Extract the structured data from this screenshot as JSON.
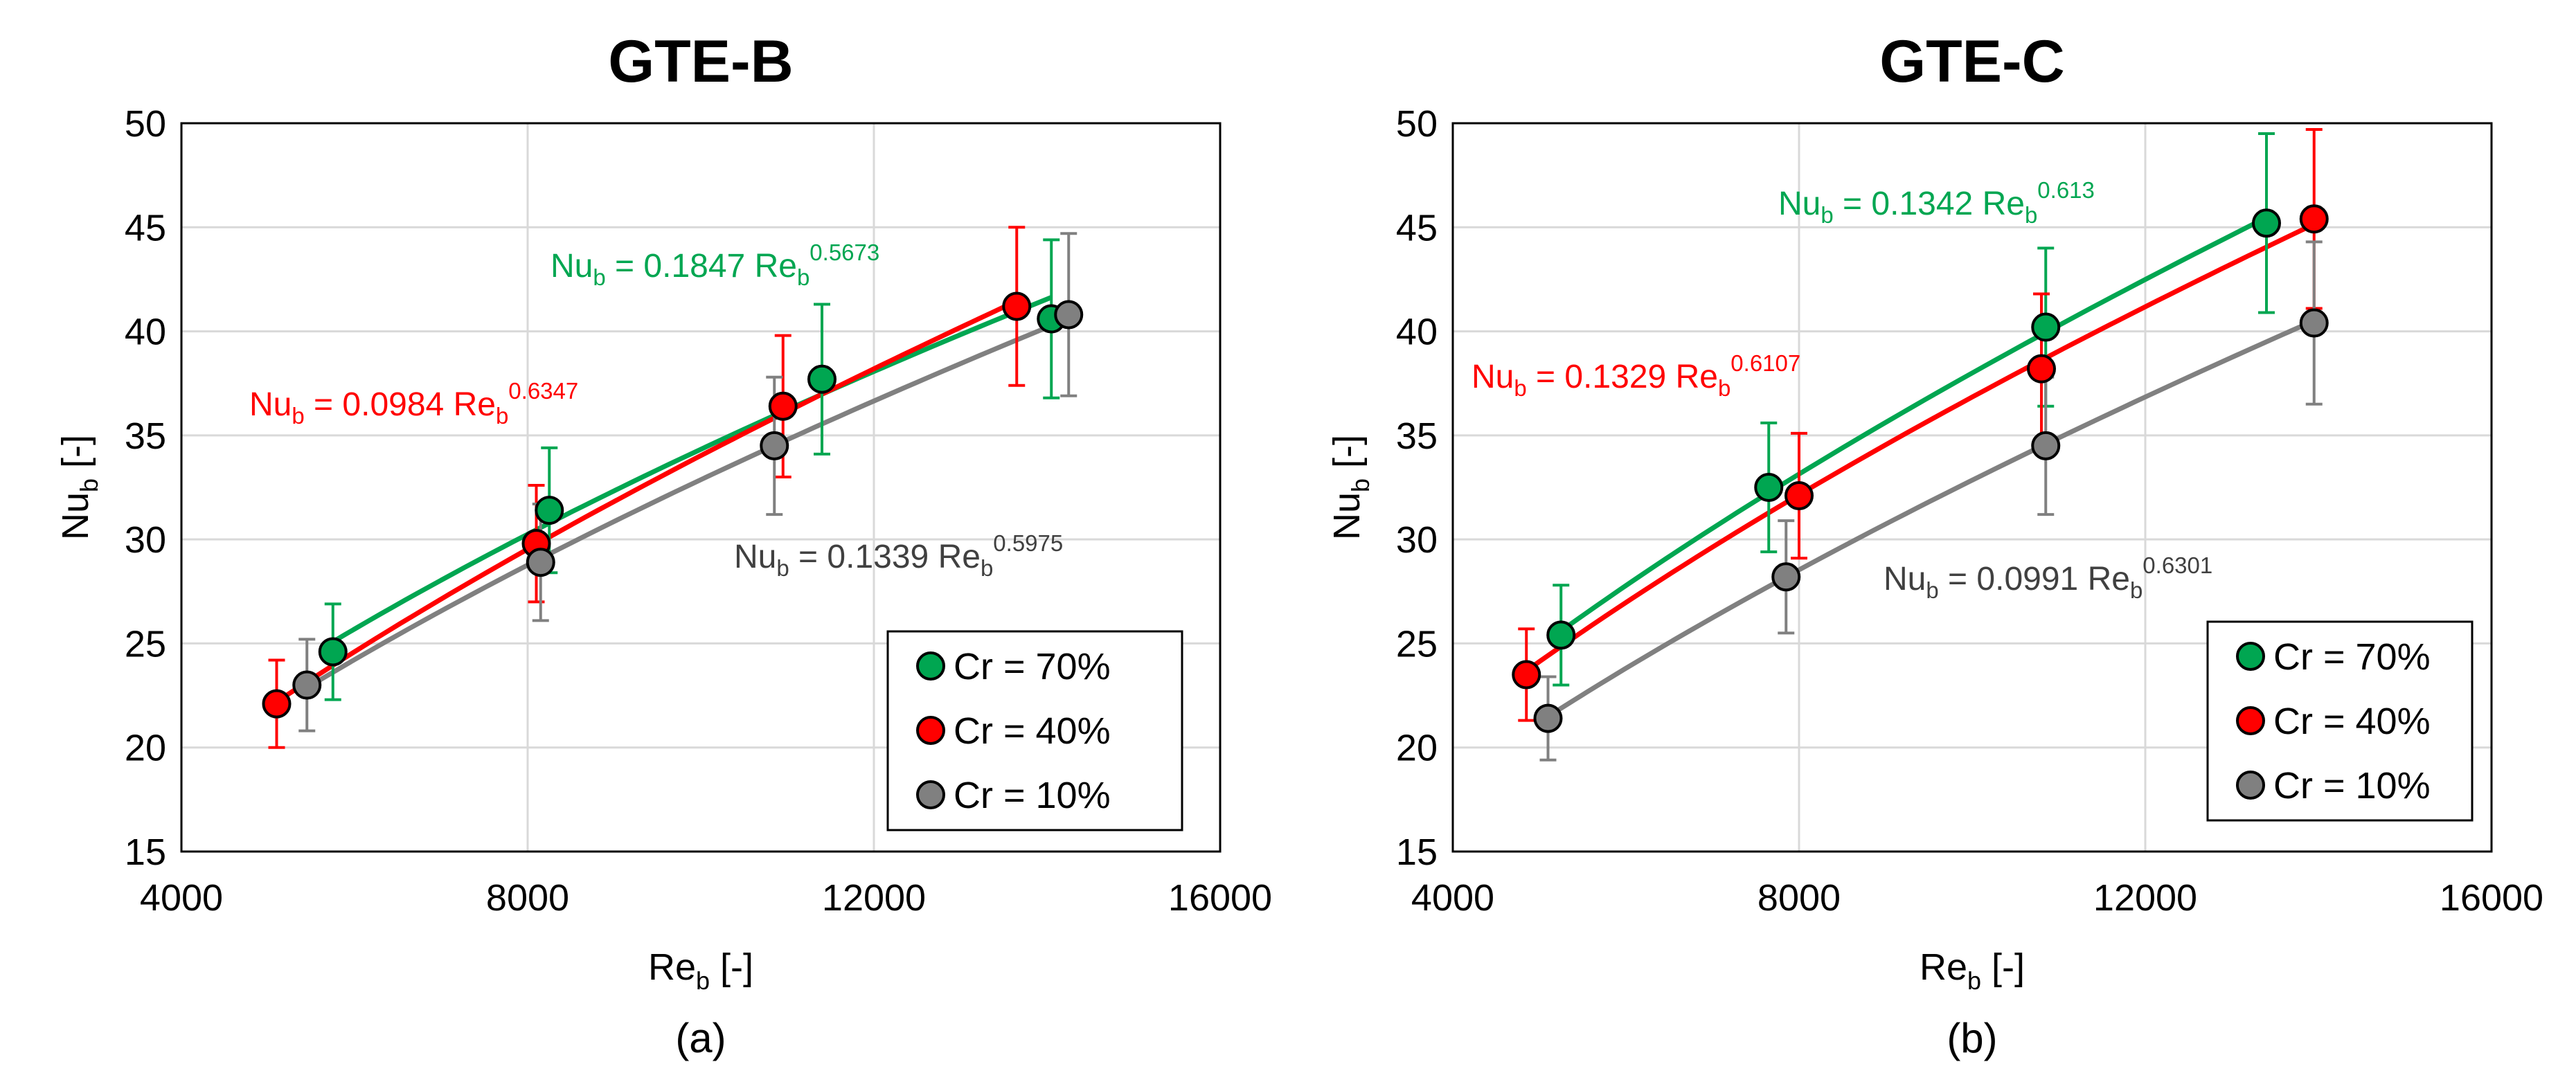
{
  "chart_data": [
    {
      "type": "scatter",
      "title": "GTE-B",
      "panel_label": "(a)",
      "xlabel": {
        "main": "Re",
        "sub": "b",
        "unit": " [-]"
      },
      "ylabel": {
        "main": "Nu",
        "sub": "b",
        "unit": " [-]"
      },
      "xlim": [
        4000,
        16000
      ],
      "ylim": [
        15,
        50
      ],
      "xticks": [
        4000,
        8000,
        12000,
        16000
      ],
      "yticks": [
        15,
        20,
        25,
        30,
        35,
        40,
        45,
        50
      ],
      "grid": true,
      "legend_position": "bottom-right",
      "series": [
        {
          "name": "Cr = 70%",
          "color": "#00a651",
          "fit_coef": 0.1847,
          "fit_exp": 0.5673,
          "equation": {
            "lhs": "Nu",
            "lhs_sub": "b",
            "mid": " = 0.1847 Re",
            "mid_sub": "b",
            "exp": "0.5673"
          },
          "equation_position": "upper-middle",
          "x": [
            5750,
            8250,
            11400,
            14050
          ],
          "y": [
            24.6,
            31.4,
            37.7,
            40.6
          ],
          "err": [
            2.3,
            3.0,
            3.6,
            3.8
          ]
        },
        {
          "name": "Cr = 40%",
          "color": "#ff0000",
          "fit_coef": 0.0984,
          "fit_exp": 0.6347,
          "equation": {
            "lhs": "Nu",
            "lhs_sub": "b",
            "mid": " = 0.0984 Re",
            "mid_sub": "b",
            "exp": "0.6347"
          },
          "equation_position": "middle-left",
          "x": [
            5100,
            8100,
            10950,
            13650
          ],
          "y": [
            22.1,
            29.8,
            36.4,
            41.2
          ],
          "err": [
            2.1,
            2.8,
            3.4,
            3.8
          ]
        },
        {
          "name": "Cr = 10%",
          "color": "#808080",
          "fit_coef": 0.1339,
          "fit_exp": 0.5975,
          "equation": {
            "lhs": "Nu",
            "lhs_sub": "b",
            "mid": " = 0.1339 Re",
            "mid_sub": "b",
            "exp": "0.5975"
          },
          "equation_position": "middle-right",
          "x": [
            5450,
            8150,
            10850,
            14250
          ],
          "y": [
            23.0,
            28.9,
            34.5,
            40.8
          ],
          "err": [
            2.2,
            2.8,
            3.3,
            3.9
          ]
        }
      ]
    },
    {
      "type": "scatter",
      "title": "GTE-C",
      "panel_label": "(b)",
      "xlabel": {
        "main": "Re",
        "sub": "b",
        "unit": " [-]"
      },
      "ylabel": {
        "main": "Nu",
        "sub": "b",
        "unit": " [-]"
      },
      "xlim": [
        4000,
        16000
      ],
      "ylim": [
        15,
        50
      ],
      "xticks": [
        4000,
        8000,
        12000,
        16000
      ],
      "yticks": [
        15,
        20,
        25,
        30,
        35,
        40,
        45,
        50
      ],
      "grid": true,
      "legend_position": "bottom-right",
      "series": [
        {
          "name": "Cr = 70%",
          "color": "#00a651",
          "fit_coef": 0.1342,
          "fit_exp": 0.613,
          "equation": {
            "lhs": "Nu",
            "lhs_sub": "b",
            "mid": " = 0.1342 Re",
            "mid_sub": "b",
            "exp": "0.613"
          },
          "equation_position": "top-middle",
          "x": [
            5250,
            7650,
            10850,
            13400
          ],
          "y": [
            25.4,
            32.5,
            40.2,
            45.2
          ],
          "err": [
            2.4,
            3.1,
            3.8,
            4.3
          ]
        },
        {
          "name": "Cr = 40%",
          "color": "#ff0000",
          "fit_coef": 0.1329,
          "fit_exp": 0.6107,
          "equation": {
            "lhs": "Nu",
            "lhs_sub": "b",
            "mid": " = 0.1329 Re",
            "mid_sub": "b",
            "exp": "0.6107"
          },
          "equation_position": "middle-left",
          "x": [
            4850,
            8000,
            10800,
            13950
          ],
          "y": [
            23.5,
            32.1,
            38.2,
            45.4
          ],
          "err": [
            2.2,
            3.0,
            3.6,
            4.3
          ]
        },
        {
          "name": "Cr = 10%",
          "color": "#808080",
          "fit_coef": 0.0991,
          "fit_exp": 0.6301,
          "equation": {
            "lhs": "Nu",
            "lhs_sub": "b",
            "mid": " = 0.0991 Re",
            "mid_sub": "b",
            "exp": "0.6301"
          },
          "equation_position": "middle-right",
          "x": [
            5100,
            7850,
            10850,
            13950
          ],
          "y": [
            21.4,
            28.2,
            34.5,
            40.4
          ],
          "err": [
            2.0,
            2.7,
            3.3,
            3.9
          ]
        }
      ]
    }
  ]
}
